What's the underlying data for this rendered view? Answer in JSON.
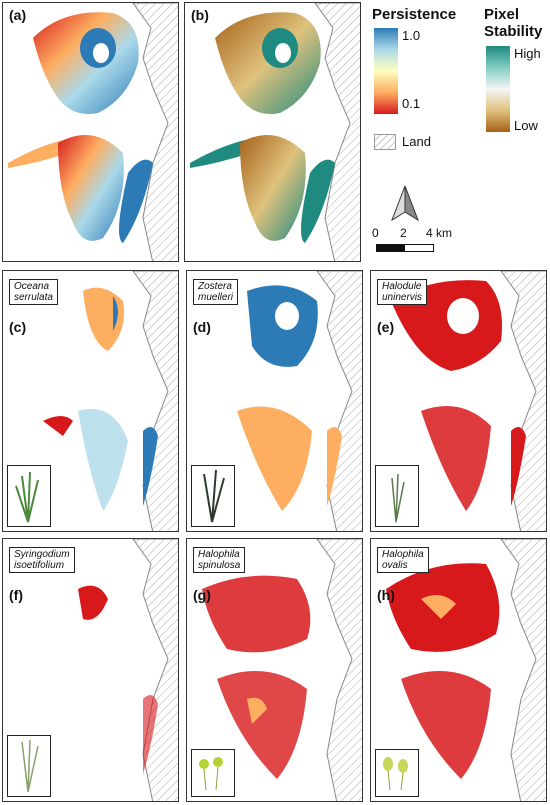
{
  "panels": {
    "a": {
      "label": "(a)"
    },
    "b": {
      "label": "(b)"
    },
    "c": {
      "label": "(c)",
      "species_line1": "Oceana",
      "species_line2": "serrulata"
    },
    "d": {
      "label": "(d)",
      "species_line1": "Zostera",
      "species_line2": "muelleri"
    },
    "e": {
      "label": "(e)",
      "species_line1": "Halodule",
      "species_line2": "uninervis"
    },
    "f": {
      "label": "(f)",
      "species_line1": "Syringodium",
      "species_line2": "isoetifolium"
    },
    "g": {
      "label": "(g)",
      "species_line1": "Halophila",
      "species_line2": "spinulosa"
    },
    "h": {
      "label": "(h)",
      "species_line1": "Halophila",
      "species_line2": "ovalis"
    }
  },
  "legend": {
    "persistence": {
      "title": "Persistence",
      "max_label": "1.0",
      "min_label": "0.1",
      "colors": [
        "#2c7bb6",
        "#abd9e9",
        "#ffffbf",
        "#fdae61",
        "#d7191c"
      ]
    },
    "stability": {
      "title_line1": "Pixel",
      "title_line2": "Stability",
      "high_label": "High",
      "low_label": "Low",
      "colors": [
        "#1f8a80",
        "#80cdc1",
        "#f5f5f5",
        "#dfc27d",
        "#a6611a"
      ]
    },
    "land": {
      "label": "Land"
    },
    "scale": {
      "tick0": "0",
      "tick1": "2",
      "tick2": "4 km"
    }
  }
}
